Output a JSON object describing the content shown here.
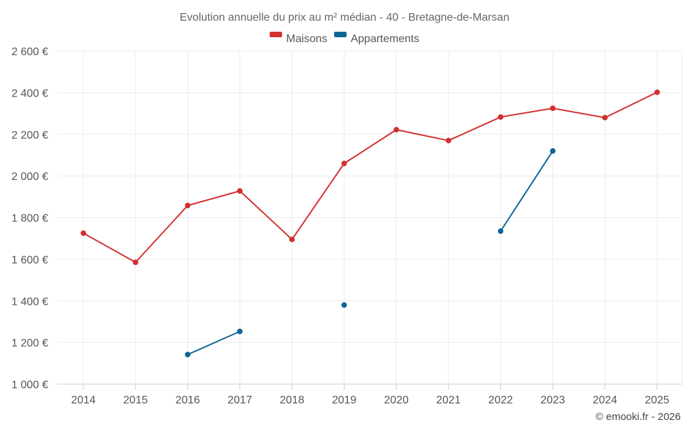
{
  "chart_data": {
    "type": "line",
    "title": "Evolution annuelle du prix au m² médian - 40 - Bretagne-de-Marsan",
    "categories": [
      "2014",
      "2015",
      "2016",
      "2017",
      "2018",
      "2019",
      "2020",
      "2021",
      "2022",
      "2023",
      "2024",
      "2025"
    ],
    "series": [
      {
        "name": "Maisons",
        "color": "#d32f2f",
        "values": [
          1725,
          1585,
          1858,
          1928,
          1695,
          2060,
          2222,
          2170,
          2283,
          2325,
          2280,
          2402
        ]
      },
      {
        "name": "Appartements",
        "color": "#0d6496",
        "values": [
          null,
          null,
          1142,
          1253,
          null,
          1380,
          null,
          null,
          1735,
          2120,
          null,
          null
        ]
      }
    ],
    "ylim": [
      1000,
      2600
    ],
    "yticks": [
      1000,
      1200,
      1400,
      1600,
      1800,
      2000,
      2200,
      2400,
      2600
    ],
    "ytick_labels": [
      "1 000 €",
      "1 200 €",
      "1 400 €",
      "1 600 €",
      "1 800 €",
      "2 000 €",
      "2 200 €",
      "2 400 €",
      "2 600 €"
    ],
    "xlabel": "",
    "ylabel": "",
    "grid": true,
    "legend_position": "top-center"
  },
  "credit": "© emooki.fr - 2026"
}
